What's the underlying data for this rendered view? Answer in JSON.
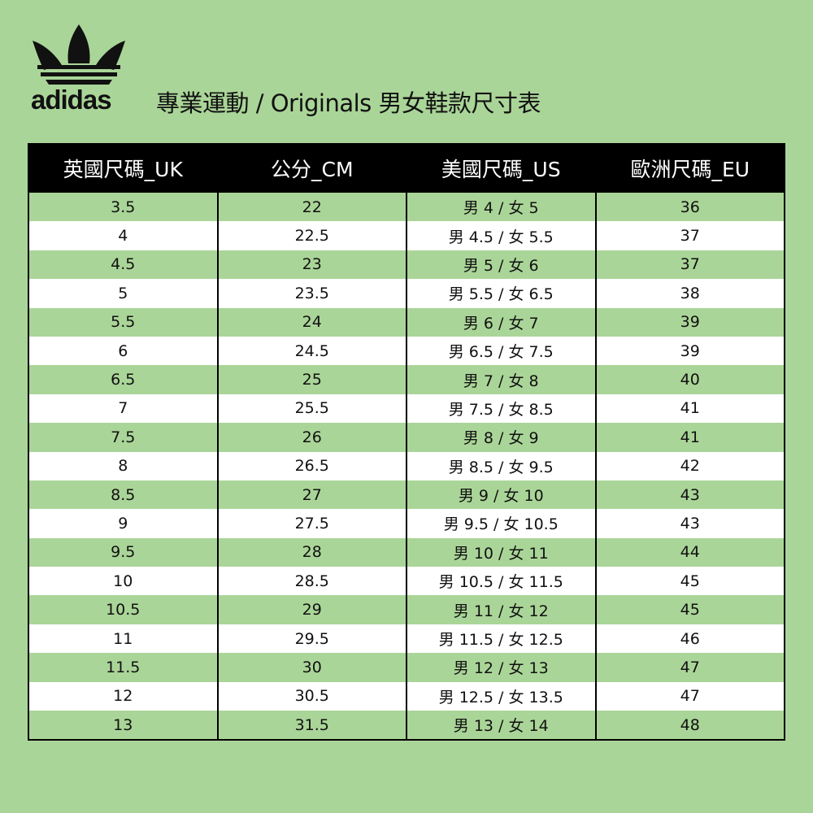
{
  "brand": {
    "logo_text": "adidas"
  },
  "title": "專業運動 / Originals 男女鞋款尺寸表",
  "colors": {
    "background": "#aad598",
    "header": "#000000",
    "row_alt": "#ffffff"
  },
  "table": {
    "headers": [
      "英國尺碼_UK",
      "公分_CM",
      "美國尺碼_US",
      "歐洲尺碼_EU"
    ],
    "rows": [
      [
        "3.5",
        "22",
        "男 4 / 女 5",
        "36"
      ],
      [
        "4",
        "22.5",
        "男 4.5 / 女 5.5",
        "37"
      ],
      [
        "4.5",
        "23",
        "男 5 / 女 6",
        "37"
      ],
      [
        "5",
        "23.5",
        "男 5.5 / 女 6.5",
        "38"
      ],
      [
        "5.5",
        "24",
        "男 6 / 女 7",
        "39"
      ],
      [
        "6",
        "24.5",
        "男 6.5 / 女 7.5",
        "39"
      ],
      [
        "6.5",
        "25",
        "男 7 / 女 8",
        "40"
      ],
      [
        "7",
        "25.5",
        "男 7.5 / 女 8.5",
        "41"
      ],
      [
        "7.5",
        "26",
        "男 8 / 女 9",
        "41"
      ],
      [
        "8",
        "26.5",
        "男 8.5 / 女 9.5",
        "42"
      ],
      [
        "8.5",
        "27",
        "男 9 / 女 10",
        "43"
      ],
      [
        "9",
        "27.5",
        "男 9.5 / 女 10.5",
        "43"
      ],
      [
        "9.5",
        "28",
        "男 10 / 女 11",
        "44"
      ],
      [
        "10",
        "28.5",
        "男 10.5 / 女 11.5",
        "45"
      ],
      [
        "10.5",
        "29",
        "男 11 / 女 12",
        "45"
      ],
      [
        "11",
        "29.5",
        "男 11.5 / 女 12.5",
        "46"
      ],
      [
        "11.5",
        "30",
        "男 12 / 女 13",
        "47"
      ],
      [
        "12",
        "30.5",
        "男 12.5 / 女 13.5",
        "47"
      ],
      [
        "13",
        "31.5",
        "男 13 / 女 14",
        "48"
      ]
    ]
  }
}
